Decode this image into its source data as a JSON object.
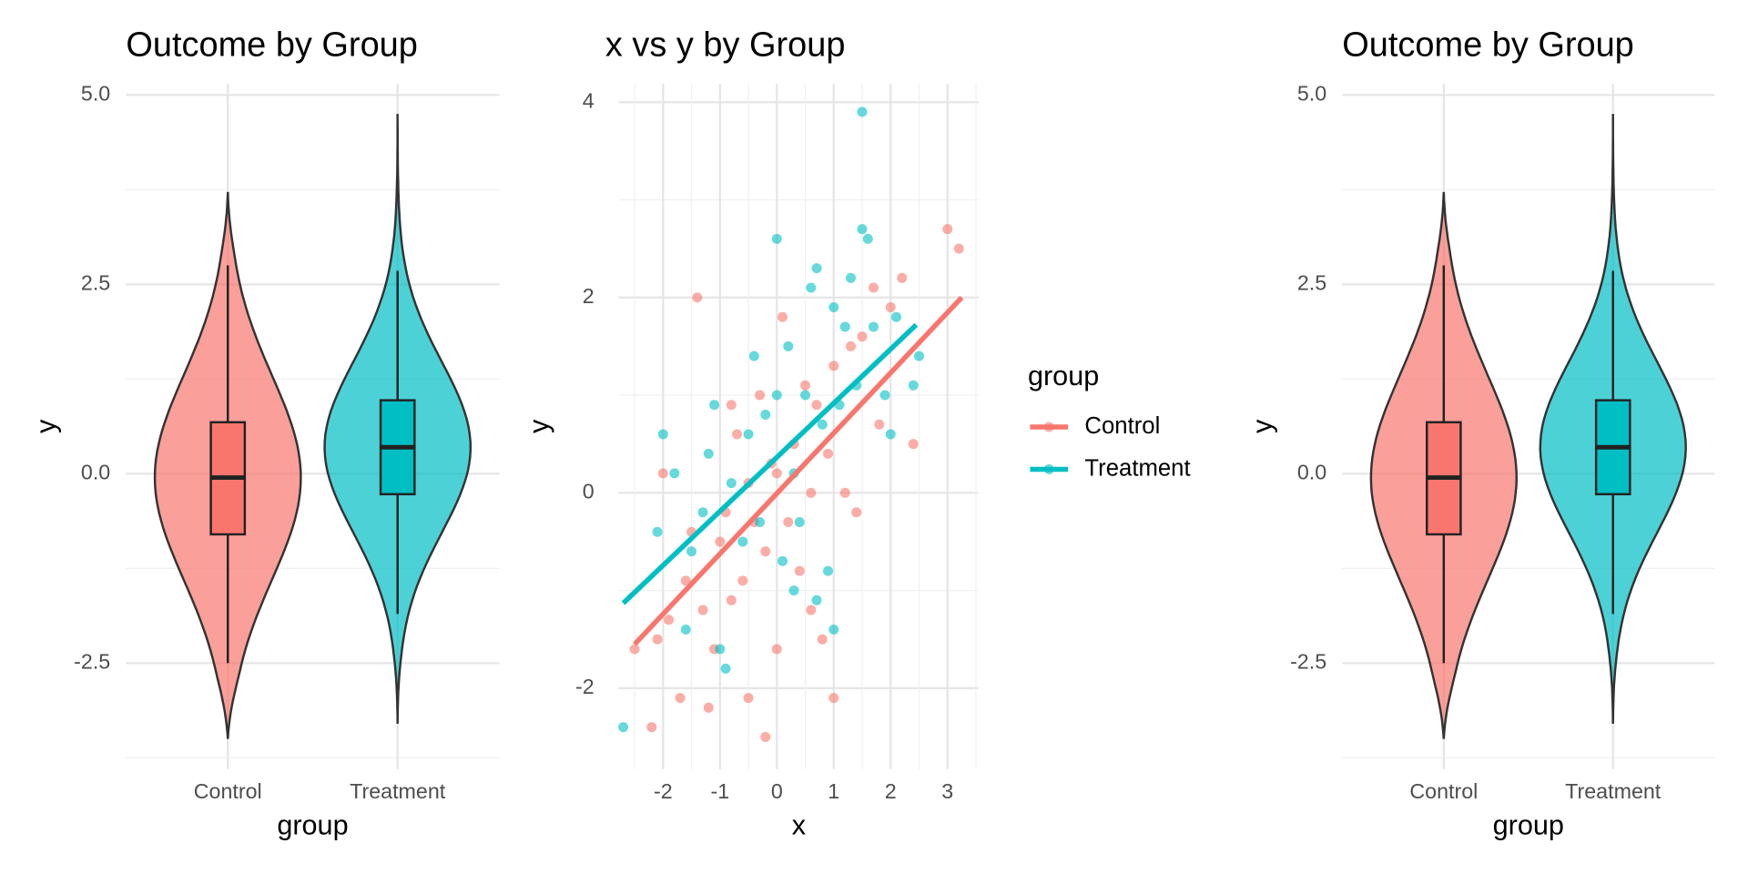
{
  "chart_data": [
    {
      "type": "violin",
      "title": "Outcome by Group",
      "x_label": "group",
      "y_label": "y",
      "categories": [
        "Control",
        "Treatment"
      ],
      "colors": [
        "#F8766D",
        "#00BFC4"
      ],
      "min": [
        -3.5,
        -3.3
      ],
      "max": [
        3.72,
        4.75
      ],
      "whisker_low": [
        -2.5,
        -1.85
      ],
      "q1": [
        -0.8,
        -0.27
      ],
      "median": [
        -0.05,
        0.35
      ],
      "q3": [
        0.68,
        0.97
      ],
      "whisker_high": [
        2.75,
        2.68
      ],
      "ylim": [
        -3.9,
        5.15
      ],
      "yticks": [
        -2.5,
        {
          "value": 0,
          "label": "0.0"
        },
        2.5,
        {
          "value": 5,
          "label": "5.0"
        }
      ],
      "minor_yticks": [
        -3.75,
        -1.25,
        1.25,
        3.75
      ],
      "grid": true
    },
    {
      "type": "scatter",
      "title": "x vs y by Group",
      "x_label": "x",
      "y_label": "y",
      "xlim": [
        -2.78,
        3.55
      ],
      "xticks": [
        -2,
        -1,
        0,
        1,
        2,
        3
      ],
      "minor_xticks": [
        -2.5,
        -1.5,
        -0.5,
        0.5,
        1.5,
        2.5,
        3.5
      ],
      "ylim": [
        -2.83,
        4.19
      ],
      "yticks": [
        -2,
        0,
        2,
        4
      ],
      "minor_yticks": [
        -1,
        1,
        3
      ],
      "grid": true,
      "legend": {
        "title": "group",
        "position": "right"
      },
      "series": [
        {
          "name": "Control",
          "color": "#F8766D",
          "x": [
            -2.5,
            -2.2,
            -2.1,
            -1.9,
            -1.7,
            -1.6,
            -1.4,
            -1.3,
            -1.2,
            -1.1,
            -1.0,
            -0.9,
            -0.8,
            -0.7,
            -0.6,
            -0.5,
            -0.5,
            -0.4,
            -0.3,
            -0.2,
            -0.2,
            -0.1,
            0.0,
            0.0,
            0.1,
            0.2,
            0.3,
            0.4,
            0.5,
            0.6,
            0.7,
            0.8,
            0.9,
            1.0,
            1.0,
            1.2,
            1.3,
            1.4,
            1.5,
            1.7,
            1.8,
            2.0,
            2.2,
            2.4,
            3.0,
            3.2,
            -2.0,
            -1.5,
            0.6,
            -0.8
          ],
          "values": [
            -1.6,
            -2.4,
            -1.5,
            -1.3,
            -2.1,
            -0.9,
            2.0,
            -1.2,
            -2.2,
            -1.6,
            -0.5,
            -0.2,
            -1.1,
            0.6,
            -0.9,
            -2.1,
            0.1,
            -0.3,
            1.0,
            -2.5,
            -0.6,
            0.3,
            -1.6,
            0.2,
            1.8,
            -0.3,
            0.5,
            -0.8,
            1.1,
            -1.2,
            0.9,
            -1.5,
            0.4,
            -2.1,
            1.3,
            0.0,
            1.5,
            -0.2,
            1.6,
            2.1,
            0.7,
            1.9,
            2.2,
            0.5,
            2.7,
            2.5,
            0.2,
            -0.4,
            0.0,
            0.9
          ],
          "fit": {
            "x": [
              -2.5,
              3.25
            ],
            "values": [
              -1.55,
              2.0
            ]
          }
        },
        {
          "name": "Treatment",
          "color": "#00BFC4",
          "x": [
            -2.7,
            -2.0,
            -2.1,
            -1.8,
            -1.6,
            -1.5,
            -1.2,
            -1.1,
            -1.0,
            -0.9,
            -0.8,
            -0.6,
            -0.5,
            -0.4,
            -0.3,
            -0.2,
            0.0,
            0.0,
            0.1,
            0.2,
            0.3,
            0.4,
            0.5,
            0.6,
            0.7,
            0.7,
            0.8,
            0.9,
            1.0,
            1.0,
            1.1,
            1.3,
            1.4,
            1.5,
            1.5,
            1.6,
            1.7,
            1.9,
            2.0,
            2.1,
            2.4,
            2.5,
            -1.3,
            0.3,
            1.2
          ],
          "values": [
            -2.4,
            0.6,
            -0.4,
            0.2,
            -1.4,
            -0.6,
            0.4,
            0.9,
            -1.6,
            -1.8,
            0.1,
            -0.5,
            0.6,
            1.4,
            -0.3,
            0.8,
            2.6,
            1.0,
            -0.7,
            1.5,
            0.2,
            -0.3,
            1.0,
            2.1,
            2.3,
            -1.1,
            0.7,
            -0.8,
            1.9,
            -1.4,
            0.9,
            2.2,
            1.1,
            2.7,
            3.9,
            2.6,
            1.7,
            1.0,
            0.6,
            1.8,
            1.1,
            1.4,
            -0.2,
            -1.0,
            1.7
          ],
          "fit": {
            "x": [
              -2.7,
              2.45
            ],
            "values": [
              -1.13,
              1.72
            ]
          }
        }
      ]
    },
    {
      "type": "violin",
      "title": "Outcome by Group",
      "x_label": "group",
      "y_label": "y",
      "categories": [
        "Control",
        "Treatment"
      ],
      "colors": [
        "#F8766D",
        "#00BFC4"
      ],
      "min": [
        -3.5,
        -3.3
      ],
      "max": [
        3.72,
        4.75
      ],
      "whisker_low": [
        -2.5,
        -1.85
      ],
      "q1": [
        -0.8,
        -0.27
      ],
      "median": [
        -0.05,
        0.35
      ],
      "q3": [
        0.68,
        0.97
      ],
      "whisker_high": [
        2.75,
        2.68
      ],
      "ylim": [
        -3.9,
        5.15
      ],
      "yticks": [
        -2.5,
        {
          "value": 0,
          "label": "0.0"
        },
        2.5,
        {
          "value": 5,
          "label": "5.0"
        }
      ],
      "minor_yticks": [
        -3.75,
        -1.25,
        1.25,
        3.75
      ],
      "grid": true
    }
  ]
}
